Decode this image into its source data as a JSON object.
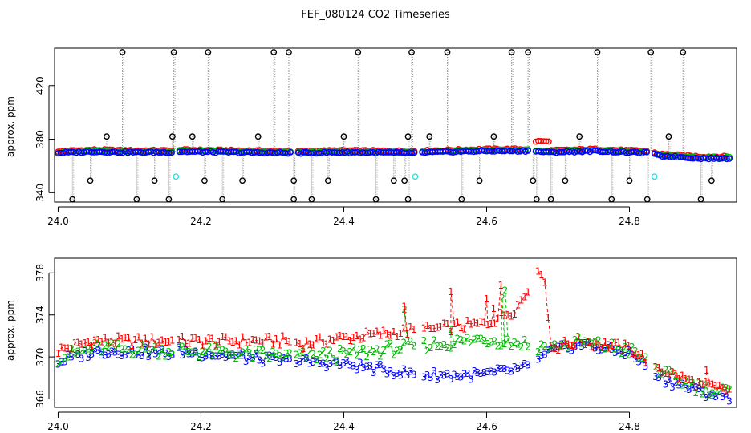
{
  "chart_data": [
    {
      "type": "scatter",
      "title": "FEF_080124  CO2 Timeseries",
      "xlabel": "",
      "ylabel": "approx. ppm",
      "xlim": [
        23.995,
        24.95
      ],
      "ylim": [
        333,
        448
      ],
      "xticks": [
        24.0,
        24.2,
        24.4,
        24.6,
        24.8
      ],
      "xtick_labels": [
        "24.0",
        "24.2",
        "24.4",
        "24.6",
        "24.8"
      ],
      "yticks": [
        340,
        380,
        420
      ],
      "ytick_labels": [
        "340",
        "380",
        "420"
      ],
      "colors": {
        "red": "#ff0000",
        "green": "#00bb00",
        "blue": "#0000ff",
        "black": "#000000",
        "cyan": "#33dddd",
        "drop": "#999999"
      },
      "gaps": [
        24.165,
        24.33,
        24.505,
        24.665,
        24.83
      ],
      "baseline": {
        "x": [
          24.0,
          24.05,
          24.1,
          24.16,
          24.17,
          24.25,
          24.33,
          24.34,
          24.4,
          24.5,
          24.52,
          24.6,
          24.66,
          24.69,
          24.75,
          24.8,
          24.83,
          24.84,
          24.9,
          24.94
        ],
        "y": [
          370,
          371,
          370.5,
          370.5,
          371,
          370.5,
          370,
          370,
          370.5,
          370,
          370.5,
          371.5,
          371.5,
          370.5,
          371.5,
          370.5,
          370,
          368,
          366,
          366
        ]
      },
      "series_offsets": {
        "red": 1.0,
        "green": 0.3,
        "blue": -0.3
      },
      "red_bump": [
        24.66,
        24.69,
        378.5
      ],
      "outliers_high": {
        "x": [
          24.09,
          24.162,
          24.21,
          24.302,
          24.323,
          24.42,
          24.495,
          24.545,
          24.635,
          24.658,
          24.755,
          24.83,
          24.875
        ],
        "y": [
          445,
          445,
          445,
          445,
          445,
          445,
          445,
          445,
          445,
          445,
          445,
          445,
          445
        ]
      },
      "outliers_mid": {
        "x": [
          24.068,
          24.16,
          24.188,
          24.28,
          24.4,
          24.49,
          24.52,
          24.61,
          24.73,
          24.855
        ],
        "y": [
          382,
          382,
          382,
          382,
          382,
          382,
          382,
          382,
          382,
          382
        ]
      },
      "outliers_low1": {
        "x": [
          24.045,
          24.135,
          24.205,
          24.258,
          24.33,
          24.378,
          24.47,
          24.485,
          24.59,
          24.665,
          24.71,
          24.8,
          24.915
        ],
        "y": [
          349,
          349,
          349,
          349,
          349,
          349,
          349,
          349,
          349,
          349,
          349,
          349,
          349
        ]
      },
      "outliers_low2": {
        "x": [
          24.02,
          24.11,
          24.155,
          24.23,
          24.33,
          24.355,
          24.445,
          24.49,
          24.565,
          24.67,
          24.69,
          24.775,
          24.825,
          24.9
        ],
        "y": [
          335,
          335,
          335,
          335,
          335,
          335,
          335,
          335,
          335,
          335,
          335,
          335,
          335,
          335
        ]
      },
      "cyan_points": {
        "x": [
          24.165,
          24.5,
          24.835
        ],
        "y": [
          352,
          352,
          352
        ]
      }
    },
    {
      "type": "line",
      "title": "",
      "xlabel": "",
      "ylabel": "approx. ppm",
      "xlim": [
        23.995,
        24.95
      ],
      "ylim": [
        365.2,
        379.4
      ],
      "xticks": [
        24.0,
        24.2,
        24.4,
        24.6,
        24.8
      ],
      "xtick_labels": [
        "24.0",
        "24.2",
        "24.4",
        "24.6",
        "24.8"
      ],
      "yticks": [
        366,
        370,
        374,
        378
      ],
      "ytick_labels": [
        "366",
        "370",
        "374",
        "378"
      ],
      "series": [
        {
          "name": "1",
          "color": "#ff0000",
          "description": "red series labelled 1"
        },
        {
          "name": "2",
          "color": "#00bb00",
          "description": "green series labelled 2"
        },
        {
          "name": "3",
          "color": "#0000ff",
          "description": "blue series labelled 3"
        }
      ],
      "blue_ctrl": {
        "x": [
          24.0,
          24.05,
          24.1,
          24.16,
          24.17,
          24.25,
          24.33,
          24.34,
          24.4,
          24.5,
          24.55,
          24.6,
          24.66,
          24.69,
          24.73,
          24.8,
          24.85,
          24.9,
          24.94
        ],
        "y": [
          369.5,
          370.5,
          370.5,
          370.3,
          370.5,
          370,
          369.5,
          369.5,
          369.3,
          368.3,
          368.2,
          368.3,
          369,
          370.5,
          371.2,
          370.3,
          367.8,
          366.6,
          366.2
        ]
      },
      "green_ctrl": {
        "x": [
          24.0,
          24.05,
          24.1,
          24.16,
          24.17,
          24.25,
          24.33,
          24.34,
          24.4,
          24.5,
          24.55,
          24.6,
          24.66,
          24.69,
          24.73,
          24.8,
          24.85,
          24.9,
          24.94
        ],
        "y": [
          369.9,
          370.8,
          370.7,
          370.6,
          370.6,
          370.3,
          370,
          370,
          370.2,
          371,
          371.3,
          371.7,
          371.2,
          370.8,
          371.4,
          370.6,
          368.3,
          367,
          366.6
        ]
      },
      "red_ctrl": {
        "x": [
          24.0,
          24.05,
          24.1,
          24.16,
          24.17,
          24.25,
          24.33,
          24.34,
          24.4,
          24.5,
          24.55,
          24.6,
          24.64,
          24.68,
          24.69,
          24.73,
          24.8,
          24.85,
          24.9,
          24.94
        ],
        "y": [
          370.6,
          371.5,
          371.5,
          371.5,
          371.5,
          371.5,
          371.5,
          371.2,
          371.8,
          372.5,
          372.8,
          373.2,
          374.5,
          378.5,
          370.8,
          371.5,
          370.8,
          368.6,
          367.3,
          366.8
        ]
      },
      "green_spikes": {
        "x": [
          24.485,
          24.55,
          24.622,
          24.626
        ],
        "y": [
          374.5,
          372.6,
          375.6,
          376.3
        ]
      },
      "red_spikes": {
        "x": [
          24.485,
          24.55,
          24.6,
          24.61,
          24.62,
          24.908
        ],
        "y": [
          374.8,
          376.2,
          375.5,
          374.6,
          376.8,
          368.7
        ]
      }
    }
  ]
}
